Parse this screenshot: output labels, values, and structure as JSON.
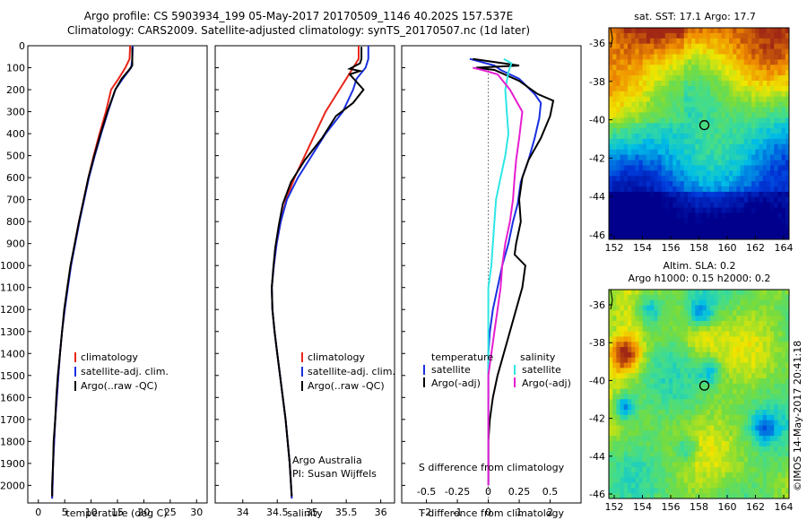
{
  "title_line1": "Argo profile: CS 5903934_199 05-May-2017 20170509_1146 40.202S 157.537E",
  "title_line2": "Climatology: CARS2009. Satellite-adjusted climatology: synTS_20170507.nc (1d later)",
  "credit_vertical": "©IMOS 14-May-2017 20:41:18",
  "sst_map": {
    "title": "sat. SST: 17.1  Argo: 17.7",
    "xticks": [
      "152",
      "154",
      "156",
      "158",
      "160",
      "162",
      "164"
    ],
    "yticks": [
      "-36",
      "-38",
      "-40",
      "-42",
      "-44",
      "-46"
    ]
  },
  "sla_map": {
    "title1": "Altim. SLA: 0.2",
    "title2": "Argo h1000: 0.15 h2000: 0.2",
    "xticks": [
      "152",
      "154",
      "156",
      "158",
      "160",
      "162",
      "164"
    ],
    "yticks": [
      "-36",
      "-38",
      "-40",
      "-42",
      "-44",
      "-46"
    ]
  },
  "colors": {
    "climatology": "#e8251a",
    "satellite": "#1a2fe0",
    "argo": "#000000",
    "sat_salinity": "#2ee6e6",
    "argo_salinity": "#e61ed0"
  },
  "chart_data": [
    {
      "type": "line",
      "xlabel": "temperature (deg C)",
      "ylabel": "",
      "xlim": [
        -2,
        32
      ],
      "ylim": [
        2080,
        0
      ],
      "xticks": [
        0,
        5,
        10,
        15,
        20,
        25,
        30
      ],
      "yticks": [
        0,
        100,
        200,
        300,
        400,
        500,
        600,
        700,
        800,
        900,
        1000,
        1100,
        1200,
        1300,
        1400,
        1500,
        1600,
        1700,
        1800,
        1900,
        2000
      ],
      "legend": [
        "climatology",
        "satellite-adj. clim.",
        "Argo(..raw -QC)"
      ],
      "series": [
        {
          "name": "climatology",
          "color": "#e8251a",
          "points": [
            [
              17.4,
              0
            ],
            [
              17.3,
              60
            ],
            [
              16.5,
              100
            ],
            [
              15.2,
              150
            ],
            [
              13.8,
              200
            ],
            [
              12.8,
              300
            ],
            [
              11.6,
              400
            ],
            [
              10.5,
              500
            ],
            [
              9.5,
              600
            ],
            [
              8.6,
              700
            ],
            [
              7.7,
              800
            ],
            [
              6.9,
              900
            ],
            [
              6.2,
              1000
            ],
            [
              5.5,
              1100
            ],
            [
              5.0,
              1200
            ],
            [
              4.5,
              1300
            ],
            [
              4.1,
              1400
            ],
            [
              3.8,
              1500
            ],
            [
              3.5,
              1600
            ],
            [
              3.2,
              1700
            ],
            [
              3.0,
              1800
            ],
            [
              2.8,
              1900
            ],
            [
              2.7,
              2000
            ],
            [
              2.6,
              2060
            ]
          ]
        },
        {
          "name": "satellite-adj. clim.",
          "color": "#1a2fe0",
          "points": [
            [
              17.9,
              0
            ],
            [
              17.8,
              60
            ],
            [
              17.6,
              100
            ],
            [
              16.0,
              150
            ],
            [
              14.6,
              200
            ],
            [
              13.2,
              300
            ],
            [
              11.9,
              400
            ],
            [
              10.7,
              500
            ],
            [
              9.6,
              600
            ],
            [
              8.7,
              700
            ],
            [
              7.8,
              800
            ],
            [
              7.0,
              900
            ],
            [
              6.2,
              1000
            ],
            [
              5.6,
              1100
            ],
            [
              5.0,
              1200
            ],
            [
              4.5,
              1300
            ],
            [
              4.1,
              1400
            ],
            [
              3.8,
              1500
            ],
            [
              3.5,
              1600
            ],
            [
              3.2,
              1700
            ],
            [
              3.0,
              1800
            ],
            [
              2.8,
              1900
            ],
            [
              2.7,
              2000
            ],
            [
              2.6,
              2060
            ]
          ]
        },
        {
          "name": "Argo(..raw -QC)",
          "color": "#000000",
          "points": [
            [
              17.8,
              5
            ],
            [
              17.8,
              90
            ],
            [
              17.2,
              110
            ],
            [
              15.8,
              150
            ],
            [
              14.6,
              200
            ],
            [
              13.1,
              300
            ],
            [
              11.8,
              400
            ],
            [
              10.6,
              500
            ],
            [
              9.5,
              600
            ],
            [
              8.6,
              700
            ],
            [
              7.7,
              800
            ],
            [
              6.9,
              900
            ],
            [
              6.1,
              1000
            ],
            [
              5.5,
              1100
            ],
            [
              4.9,
              1200
            ],
            [
              4.5,
              1300
            ],
            [
              4.1,
              1400
            ],
            [
              3.7,
              1500
            ],
            [
              3.4,
              1600
            ],
            [
              3.2,
              1700
            ],
            [
              2.9,
              1800
            ],
            [
              2.8,
              1900
            ],
            [
              2.6,
              2000
            ],
            [
              2.6,
              2050
            ]
          ]
        }
      ]
    },
    {
      "type": "line",
      "xlabel": "salinity",
      "xlim": [
        33.6,
        36.2
      ],
      "ylim": [
        2080,
        0
      ],
      "xticks": [
        34,
        34.5,
        35,
        35.5,
        36
      ],
      "legend": [
        "climatology",
        "satellite-adj. clim.",
        "Argo(..raw -QC)"
      ],
      "annotation": [
        "Argo Australia",
        "PI: Susan Wijffels"
      ],
      "series": [
        {
          "name": "climatology",
          "color": "#e8251a",
          "points": [
            [
              35.68,
              0
            ],
            [
              35.68,
              60
            ],
            [
              35.6,
              100
            ],
            [
              35.5,
              150
            ],
            [
              35.4,
              200
            ],
            [
              35.2,
              300
            ],
            [
              35.05,
              400
            ],
            [
              34.9,
              500
            ],
            [
              34.75,
              600
            ],
            [
              34.63,
              700
            ],
            [
              34.55,
              800
            ],
            [
              34.49,
              900
            ],
            [
              34.45,
              1000
            ],
            [
              34.42,
              1100
            ],
            [
              34.43,
              1200
            ],
            [
              34.46,
              1300
            ],
            [
              34.5,
              1400
            ],
            [
              34.54,
              1500
            ],
            [
              34.58,
              1600
            ],
            [
              34.62,
              1700
            ],
            [
              34.65,
              1800
            ],
            [
              34.68,
              1900
            ],
            [
              34.7,
              2000
            ],
            [
              34.71,
              2060
            ]
          ]
        },
        {
          "name": "satellite-adj. clim.",
          "color": "#1a2fe0",
          "points": [
            [
              35.82,
              0
            ],
            [
              35.82,
              60
            ],
            [
              35.78,
              100
            ],
            [
              35.65,
              150
            ],
            [
              35.6,
              200
            ],
            [
              35.45,
              300
            ],
            [
              35.2,
              400
            ],
            [
              35.0,
              500
            ],
            [
              34.8,
              600
            ],
            [
              34.64,
              700
            ],
            [
              34.55,
              800
            ],
            [
              34.49,
              900
            ],
            [
              34.45,
              1000
            ],
            [
              34.42,
              1100
            ],
            [
              34.43,
              1200
            ],
            [
              34.46,
              1300
            ],
            [
              34.5,
              1400
            ],
            [
              34.54,
              1500
            ],
            [
              34.58,
              1600
            ],
            [
              34.62,
              1700
            ],
            [
              34.65,
              1800
            ],
            [
              34.68,
              1900
            ],
            [
              34.7,
              2000
            ],
            [
              34.71,
              2060
            ]
          ]
        },
        {
          "name": "Argo(..raw -QC)",
          "color": "#000000",
          "points": [
            [
              35.72,
              5
            ],
            [
              35.72,
              60
            ],
            [
              35.7,
              80
            ],
            [
              35.55,
              105
            ],
            [
              35.7,
              115
            ],
            [
              35.55,
              130
            ],
            [
              35.75,
              200
            ],
            [
              35.6,
              260
            ],
            [
              35.35,
              320
            ],
            [
              35.15,
              420
            ],
            [
              34.9,
              520
            ],
            [
              34.7,
              620
            ],
            [
              34.58,
              720
            ],
            [
              34.52,
              820
            ],
            [
              34.47,
              920
            ],
            [
              34.44,
              1020
            ],
            [
              34.42,
              1100
            ],
            [
              34.43,
              1200
            ],
            [
              34.46,
              1300
            ],
            [
              34.5,
              1400
            ],
            [
              34.54,
              1500
            ],
            [
              34.58,
              1600
            ],
            [
              34.62,
              1700
            ],
            [
              34.65,
              1800
            ],
            [
              34.68,
              1900
            ],
            [
              34.7,
              2000
            ],
            [
              34.71,
              2050
            ]
          ]
        }
      ]
    },
    {
      "type": "line",
      "xlabel": "T difference from climatology",
      "x2label": "S difference from climatology",
      "xlim": [
        -2.8,
        3.0
      ],
      "ylim": [
        2080,
        0
      ],
      "xticks": [
        -2,
        -1,
        0,
        1,
        2
      ],
      "x2ticks": [
        "-0.5",
        "-0.25",
        "0",
        "0.25",
        "0.5"
      ],
      "legend_left": {
        "title": "temperature",
        "items": [
          "satellite",
          "Argo(-adj)"
        ]
      },
      "legend_right": {
        "title": "salinity",
        "items": [
          "satellite",
          "Argo(-adj)"
        ]
      },
      "series": [
        {
          "name": "T satellite",
          "color": "#1a2fe0",
          "points": [
            [
              -0.6,
              60
            ],
            [
              0.2,
              90
            ],
            [
              0.4,
              110
            ],
            [
              1.0,
              150
            ],
            [
              1.5,
              220
            ],
            [
              1.7,
              260
            ],
            [
              1.65,
              330
            ],
            [
              1.5,
              420
            ],
            [
              1.3,
              520
            ],
            [
              1.05,
              620
            ],
            [
              0.95,
              720
            ],
            [
              0.8,
              800
            ],
            [
              0.65,
              900
            ],
            [
              0.45,
              1000
            ],
            [
              0.3,
              1100
            ],
            [
              0.15,
              1200
            ],
            [
              0.05,
              1300
            ],
            [
              0.0,
              1400
            ],
            [
              0.0,
              2000
            ]
          ]
        },
        {
          "name": "T Argo(-adj)",
          "color": "#000000",
          "points": [
            [
              -0.5,
              60
            ],
            [
              1.0,
              90
            ],
            [
              -0.4,
              100
            ],
            [
              0.2,
              110
            ],
            [
              1.0,
              160
            ],
            [
              1.6,
              220
            ],
            [
              2.1,
              250
            ],
            [
              2.0,
              320
            ],
            [
              1.7,
              420
            ],
            [
              1.3,
              520
            ],
            [
              1.1,
              600
            ],
            [
              1.0,
              700
            ],
            [
              1.05,
              800
            ],
            [
              0.9,
              900
            ],
            [
              0.85,
              950
            ],
            [
              1.2,
              1000
            ],
            [
              1.1,
              1100
            ],
            [
              0.9,
              1200
            ],
            [
              0.7,
              1300
            ],
            [
              0.5,
              1400
            ],
            [
              0.3,
              1500
            ],
            [
              0.15,
              1600
            ],
            [
              0.05,
              1700
            ],
            [
              0.0,
              1800
            ],
            [
              0.0,
              2000
            ]
          ]
        },
        {
          "name": "S satellite",
          "color": "#2ee6e6",
          "points": [
            [
              0.5,
              60
            ],
            [
              0.75,
              80
            ],
            [
              0.65,
              120
            ],
            [
              0.55,
              200
            ],
            [
              0.6,
              300
            ],
            [
              0.65,
              400
            ],
            [
              0.55,
              500
            ],
            [
              0.4,
              600
            ],
            [
              0.25,
              700
            ],
            [
              0.2,
              800
            ],
            [
              0.15,
              900
            ],
            [
              0.1,
              1000
            ],
            [
              0.0,
              1100
            ],
            [
              0.0,
              1400
            ],
            [
              0.0,
              2000
            ]
          ]
        },
        {
          "name": "S Argo(-adj)",
          "color": "#e61ed0",
          "points": [
            [
              -0.5,
              100
            ],
            [
              -0.2,
              110
            ],
            [
              0.3,
              130
            ],
            [
              0.7,
              200
            ],
            [
              1.1,
              300
            ],
            [
              1.0,
              420
            ],
            [
              0.9,
              520
            ],
            [
              0.85,
              600
            ],
            [
              0.8,
              700
            ],
            [
              0.7,
              800
            ],
            [
              0.55,
              900
            ],
            [
              0.45,
              1000
            ],
            [
              0.4,
              1100
            ],
            [
              0.3,
              1200
            ],
            [
              0.2,
              1300
            ],
            [
              0.1,
              1400
            ],
            [
              0.0,
              1500
            ],
            [
              0.0,
              2000
            ]
          ]
        }
      ]
    }
  ]
}
